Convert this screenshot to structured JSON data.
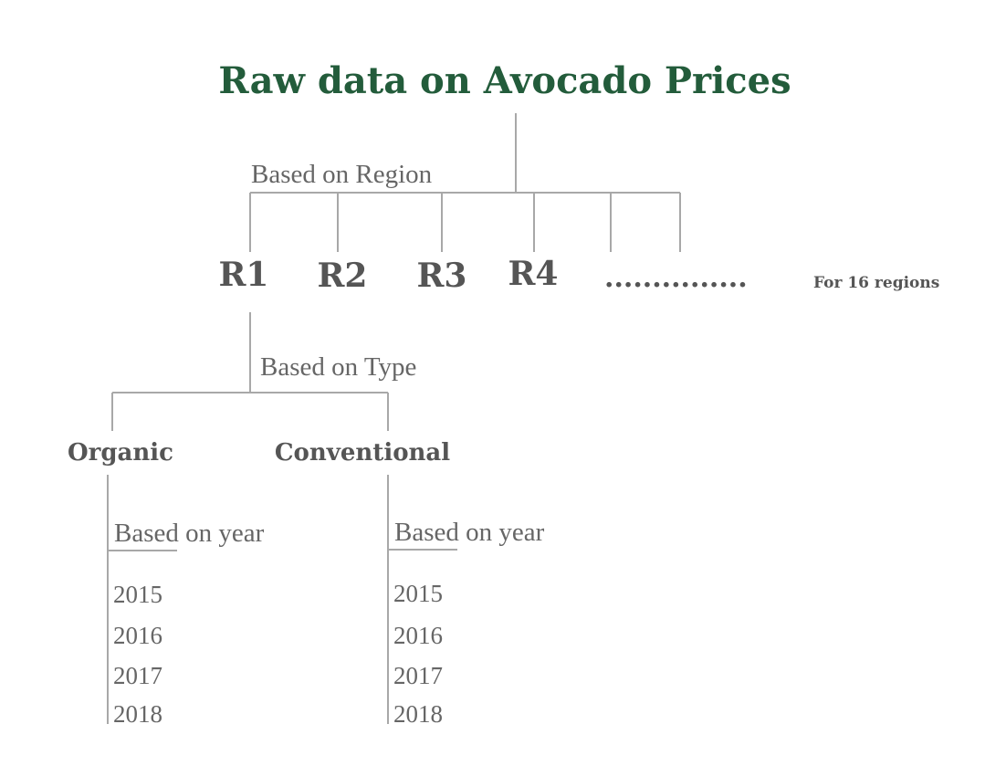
{
  "title": "Raw data on Avocado Prices",
  "colors": {
    "title": "#235c3b",
    "text": "#555555",
    "label": "#666666",
    "connector": "#a8a8a8"
  },
  "region_level": {
    "edge_label": "Based on Region",
    "nodes": [
      "R1",
      "R2",
      "R3",
      "R4"
    ],
    "ellipsis": "...............",
    "note": "For 16 regions"
  },
  "type_level": {
    "edge_label": "Based on Type",
    "nodes": [
      "Organic",
      "Conventional"
    ]
  },
  "year_level": {
    "organic": {
      "edge_label": "Based on year",
      "years": [
        "2015",
        "2016",
        "2017",
        "2018"
      ]
    },
    "conventional": {
      "edge_label": "Based on year",
      "years": [
        "2015",
        "2016",
        "2017",
        "2018"
      ]
    }
  }
}
